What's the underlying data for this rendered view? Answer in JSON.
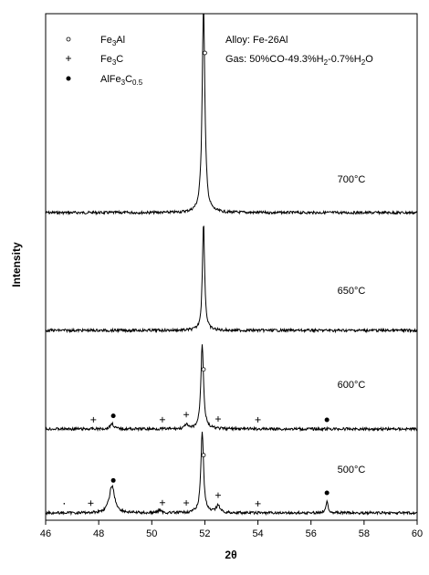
{
  "chart_data": {
    "type": "line",
    "xlabel": "2θ",
    "ylabel": "Intensity",
    "xlim": [
      46,
      60
    ],
    "xticks": [
      "46",
      "48",
      "50",
      "52",
      "54",
      "56",
      "58",
      "60"
    ],
    "info": {
      "alloy": "Alloy: Fe-26Al",
      "gas_prefix": "Gas: 50%CO-49.3%H",
      "gas_sub": "2",
      "gas_suffix": "-0.7%H",
      "gas_sub2": "2",
      "gas_tail": "O"
    },
    "legend": [
      {
        "marker": "open-circle",
        "base": "Fe",
        "sub": "3",
        "rest": "Al"
      },
      {
        "marker": "plus",
        "base": "Fe",
        "sub": "3",
        "rest": "C"
      },
      {
        "marker": "filled-circle",
        "base": "AlFe",
        "sub": "3",
        "rest": "C",
        "sub2": "0.5"
      }
    ],
    "series": [
      {
        "name": "700°C",
        "peaks": [
          {
            "x": 51.95,
            "height": 1.0,
            "width": 0.06
          }
        ],
        "markers": [
          {
            "x": 52.0,
            "type": "open-circle"
          }
        ]
      },
      {
        "name": "650°C",
        "peaks": [
          {
            "x": 51.95,
            "height": 0.85,
            "width": 0.05
          }
        ],
        "markers": []
      },
      {
        "name": "600°C",
        "peaks": [
          {
            "x": 51.9,
            "height": 0.78,
            "width": 0.06
          },
          {
            "x": 48.5,
            "height": 0.05,
            "width": 0.08
          },
          {
            "x": 51.3,
            "height": 0.04,
            "width": 0.06
          }
        ],
        "markers": [
          {
            "x": 47.8,
            "type": "plus"
          },
          {
            "x": 48.55,
            "type": "filled-circle"
          },
          {
            "x": 50.4,
            "type": "plus"
          },
          {
            "x": 51.3,
            "type": "plus"
          },
          {
            "x": 51.95,
            "type": "open-circle"
          },
          {
            "x": 52.5,
            "type": "plus"
          },
          {
            "x": 54.0,
            "type": "plus"
          },
          {
            "x": 56.6,
            "type": "filled-circle"
          }
        ]
      },
      {
        "name": "500°C",
        "peaks": [
          {
            "x": 51.9,
            "height": 0.75,
            "width": 0.06
          },
          {
            "x": 48.5,
            "height": 0.25,
            "width": 0.12
          },
          {
            "x": 52.5,
            "height": 0.07,
            "width": 0.08
          },
          {
            "x": 56.6,
            "height": 0.1,
            "width": 0.06
          },
          {
            "x": 50.3,
            "height": 0.03,
            "width": 0.06
          }
        ],
        "markers": [
          {
            "x": 46.7,
            "type": "dot"
          },
          {
            "x": 47.7,
            "type": "plus"
          },
          {
            "x": 48.55,
            "type": "filled-circle"
          },
          {
            "x": 50.4,
            "type": "plus"
          },
          {
            "x": 51.3,
            "type": "plus"
          },
          {
            "x": 51.95,
            "type": "open-circle"
          },
          {
            "x": 52.5,
            "type": "plus"
          },
          {
            "x": 54.0,
            "type": "plus"
          },
          {
            "x": 56.6,
            "type": "filled-circle"
          }
        ]
      }
    ]
  }
}
